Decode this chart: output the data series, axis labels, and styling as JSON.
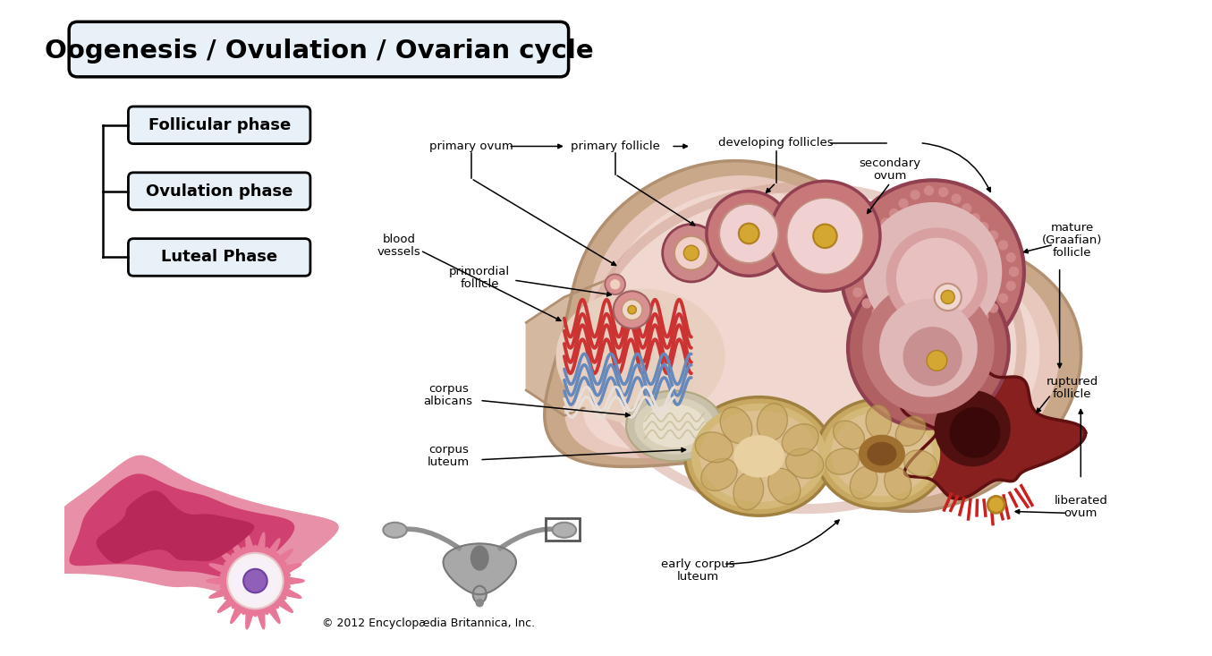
{
  "title": "Oogenesis / Ovulation / Ovarian cycle",
  "bg_color": "#ffffff",
  "title_box_color": "#e8f0f8",
  "title_box_edge": "#000000",
  "phase_box_color": "#e8f0f8",
  "phase_box_edge": "#000000",
  "phases": [
    "Follicular phase",
    "Ovulation phase",
    "Luteal Phase"
  ],
  "copyright": "© 2012 Encyclopædia Britannica, Inc.",
  "ovary_skin": "#e8c8b8",
  "ovary_inner": "#f0d8cc",
  "ovary_outer_edge": "#c8a090",
  "follicle_wall": "#c87878",
  "follicle_inner": "#f0d0d0",
  "follicle_egg_yolk": "#d4a830",
  "corpus_luteum_tan": "#dcc090",
  "corpus_luteum_edge": "#c0a060",
  "ruptured_dark": "#8b3030",
  "ruptured_red": "#cc2020",
  "blob_outer": "#e87090",
  "blob_mid": "#d04070",
  "blob_dark": "#b82858",
  "egg_pink": "#e87898",
  "egg_white": "#f8f0f0",
  "egg_purple": "#9060b8",
  "vessel_red": "#cc3333",
  "vessel_blue": "#6688cc",
  "vessel_white": "#e8e8e8",
  "stalk_color": "#d4b8a0",
  "graafian_dark": "#a05060"
}
